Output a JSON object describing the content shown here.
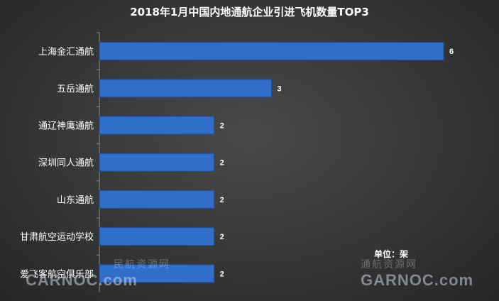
{
  "chart_data": {
    "type": "bar",
    "orientation": "horizontal",
    "title": "2018年1月中国内地通航企业引进飞机数量TOP3",
    "categories": [
      "上海金汇通航",
      "五岳通航",
      "通辽神鹰通航",
      "深圳同人通航",
      "山东通航",
      "甘肃航空运动学校",
      "爱飞客航空俱乐部"
    ],
    "values": [
      6,
      3,
      2,
      2,
      2,
      2,
      2
    ],
    "xlim": [
      0,
      6
    ],
    "data_labels": true,
    "grid": false,
    "legend": "none",
    "bar_color": "#2f6fca"
  },
  "unit_label": "单位：架",
  "watermarks": [
    {
      "cn": "民航资源网",
      "en": "CARNOC.com"
    },
    {
      "cn": "通航资源网",
      "en": "GARNOC.com"
    }
  ]
}
